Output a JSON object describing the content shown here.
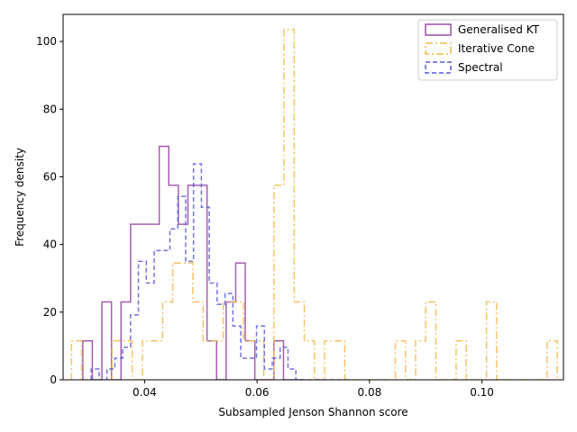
{
  "chart_data": {
    "type": "histogram",
    "xlabel": "Subsampled Jenson Shannon score",
    "ylabel": "Frequency density",
    "xlim": [
      0.0255,
      0.1145
    ],
    "ylim": [
      0,
      108
    ],
    "xticks": [
      0.04,
      0.06,
      0.08,
      0.1
    ],
    "xtick_labels": [
      "0.04",
      "0.06",
      "0.08",
      "0.10"
    ],
    "yticks": [
      0,
      20,
      40,
      60,
      80,
      100
    ],
    "ytick_labels": [
      "0",
      "20",
      "40",
      "60",
      "80",
      "100"
    ],
    "grid": false,
    "legend_position": "upper-right",
    "series": [
      {
        "name": "Generalised KT",
        "style": "solid",
        "color": "#9b4da8",
        "edges": [
          0.029,
          0.0307,
          0.0324,
          0.0341,
          0.0358,
          0.0375,
          0.0392,
          0.0409,
          0.0426,
          0.0443,
          0.046,
          0.0477,
          0.0494,
          0.0511,
          0.0528,
          0.0545,
          0.0562,
          0.0579,
          0.0596,
          0.0613,
          0.063,
          0.0647,
          0.0664,
          0.0681
        ],
        "values": [
          11.5,
          0,
          23,
          0,
          23,
          46,
          46,
          46,
          69,
          57.5,
          46,
          57.5,
          57.5,
          11.5,
          0,
          23,
          34.5,
          11.5,
          0,
          0,
          11.5,
          0,
          0
        ]
      },
      {
        "name": "Iterative Cone",
        "style": "dashdot",
        "color": "#f5b94a",
        "edges": [
          0.027,
          0.0288,
          0.0306,
          0.0324,
          0.0342,
          0.036,
          0.0378,
          0.0396,
          0.0414,
          0.0432,
          0.045,
          0.0468,
          0.0486,
          0.0504,
          0.0522,
          0.054,
          0.0558,
          0.0576,
          0.0594,
          0.0612,
          0.063,
          0.0648,
          0.0666,
          0.0684,
          0.0702,
          0.072,
          0.0738,
          0.0756,
          0.0774,
          0.0792,
          0.081,
          0.0828,
          0.0846,
          0.0864,
          0.0882,
          0.09,
          0.0918,
          0.0936,
          0.0954,
          0.0972,
          0.099,
          0.1008,
          0.1026,
          0.1044,
          0.1062,
          0.108,
          0.1098,
          0.1116,
          0.1134
        ],
        "values": [
          11.5,
          0,
          0,
          0,
          11.5,
          11.5,
          0,
          11.5,
          11.5,
          23,
          34.5,
          34.5,
          23,
          11.5,
          11.5,
          23,
          23,
          11.5,
          11.5,
          0,
          57.5,
          103.5,
          23,
          11.5,
          0,
          11.5,
          11.5,
          0,
          0,
          0,
          0,
          0,
          11.5,
          0,
          11.5,
          23,
          0,
          0,
          11.5,
          0,
          0,
          23,
          0,
          0,
          0,
          0,
          0,
          11.5
        ]
      },
      {
        "name": "Spectral",
        "style": "dashed",
        "color": "#5b5bdc",
        "edges": [
          0.0305,
          0.0319,
          0.0333,
          0.0347,
          0.0361,
          0.0375,
          0.0389,
          0.0403,
          0.0417,
          0.0431,
          0.0445,
          0.0459,
          0.0473,
          0.0487,
          0.0501,
          0.0515,
          0.0529,
          0.0543,
          0.0557,
          0.0571,
          0.0585,
          0.0599,
          0.0613,
          0.0627,
          0.0641,
          0.0655,
          0.0669,
          0.0683,
          0.0697,
          0.0711,
          0.0725,
          0.0739,
          0.0753,
          0.0767
        ],
        "values": [
          3.2,
          0,
          3.2,
          6.4,
          9.6,
          19.2,
          35,
          28.6,
          38.2,
          38.2,
          44.6,
          54.2,
          35,
          63.8,
          51,
          28.6,
          22.3,
          25.5,
          15.9,
          6.4,
          6.4,
          15.9,
          3.2,
          6.4,
          9.6,
          3.2,
          0,
          0,
          0,
          0,
          0,
          0,
          0
        ]
      }
    ]
  }
}
